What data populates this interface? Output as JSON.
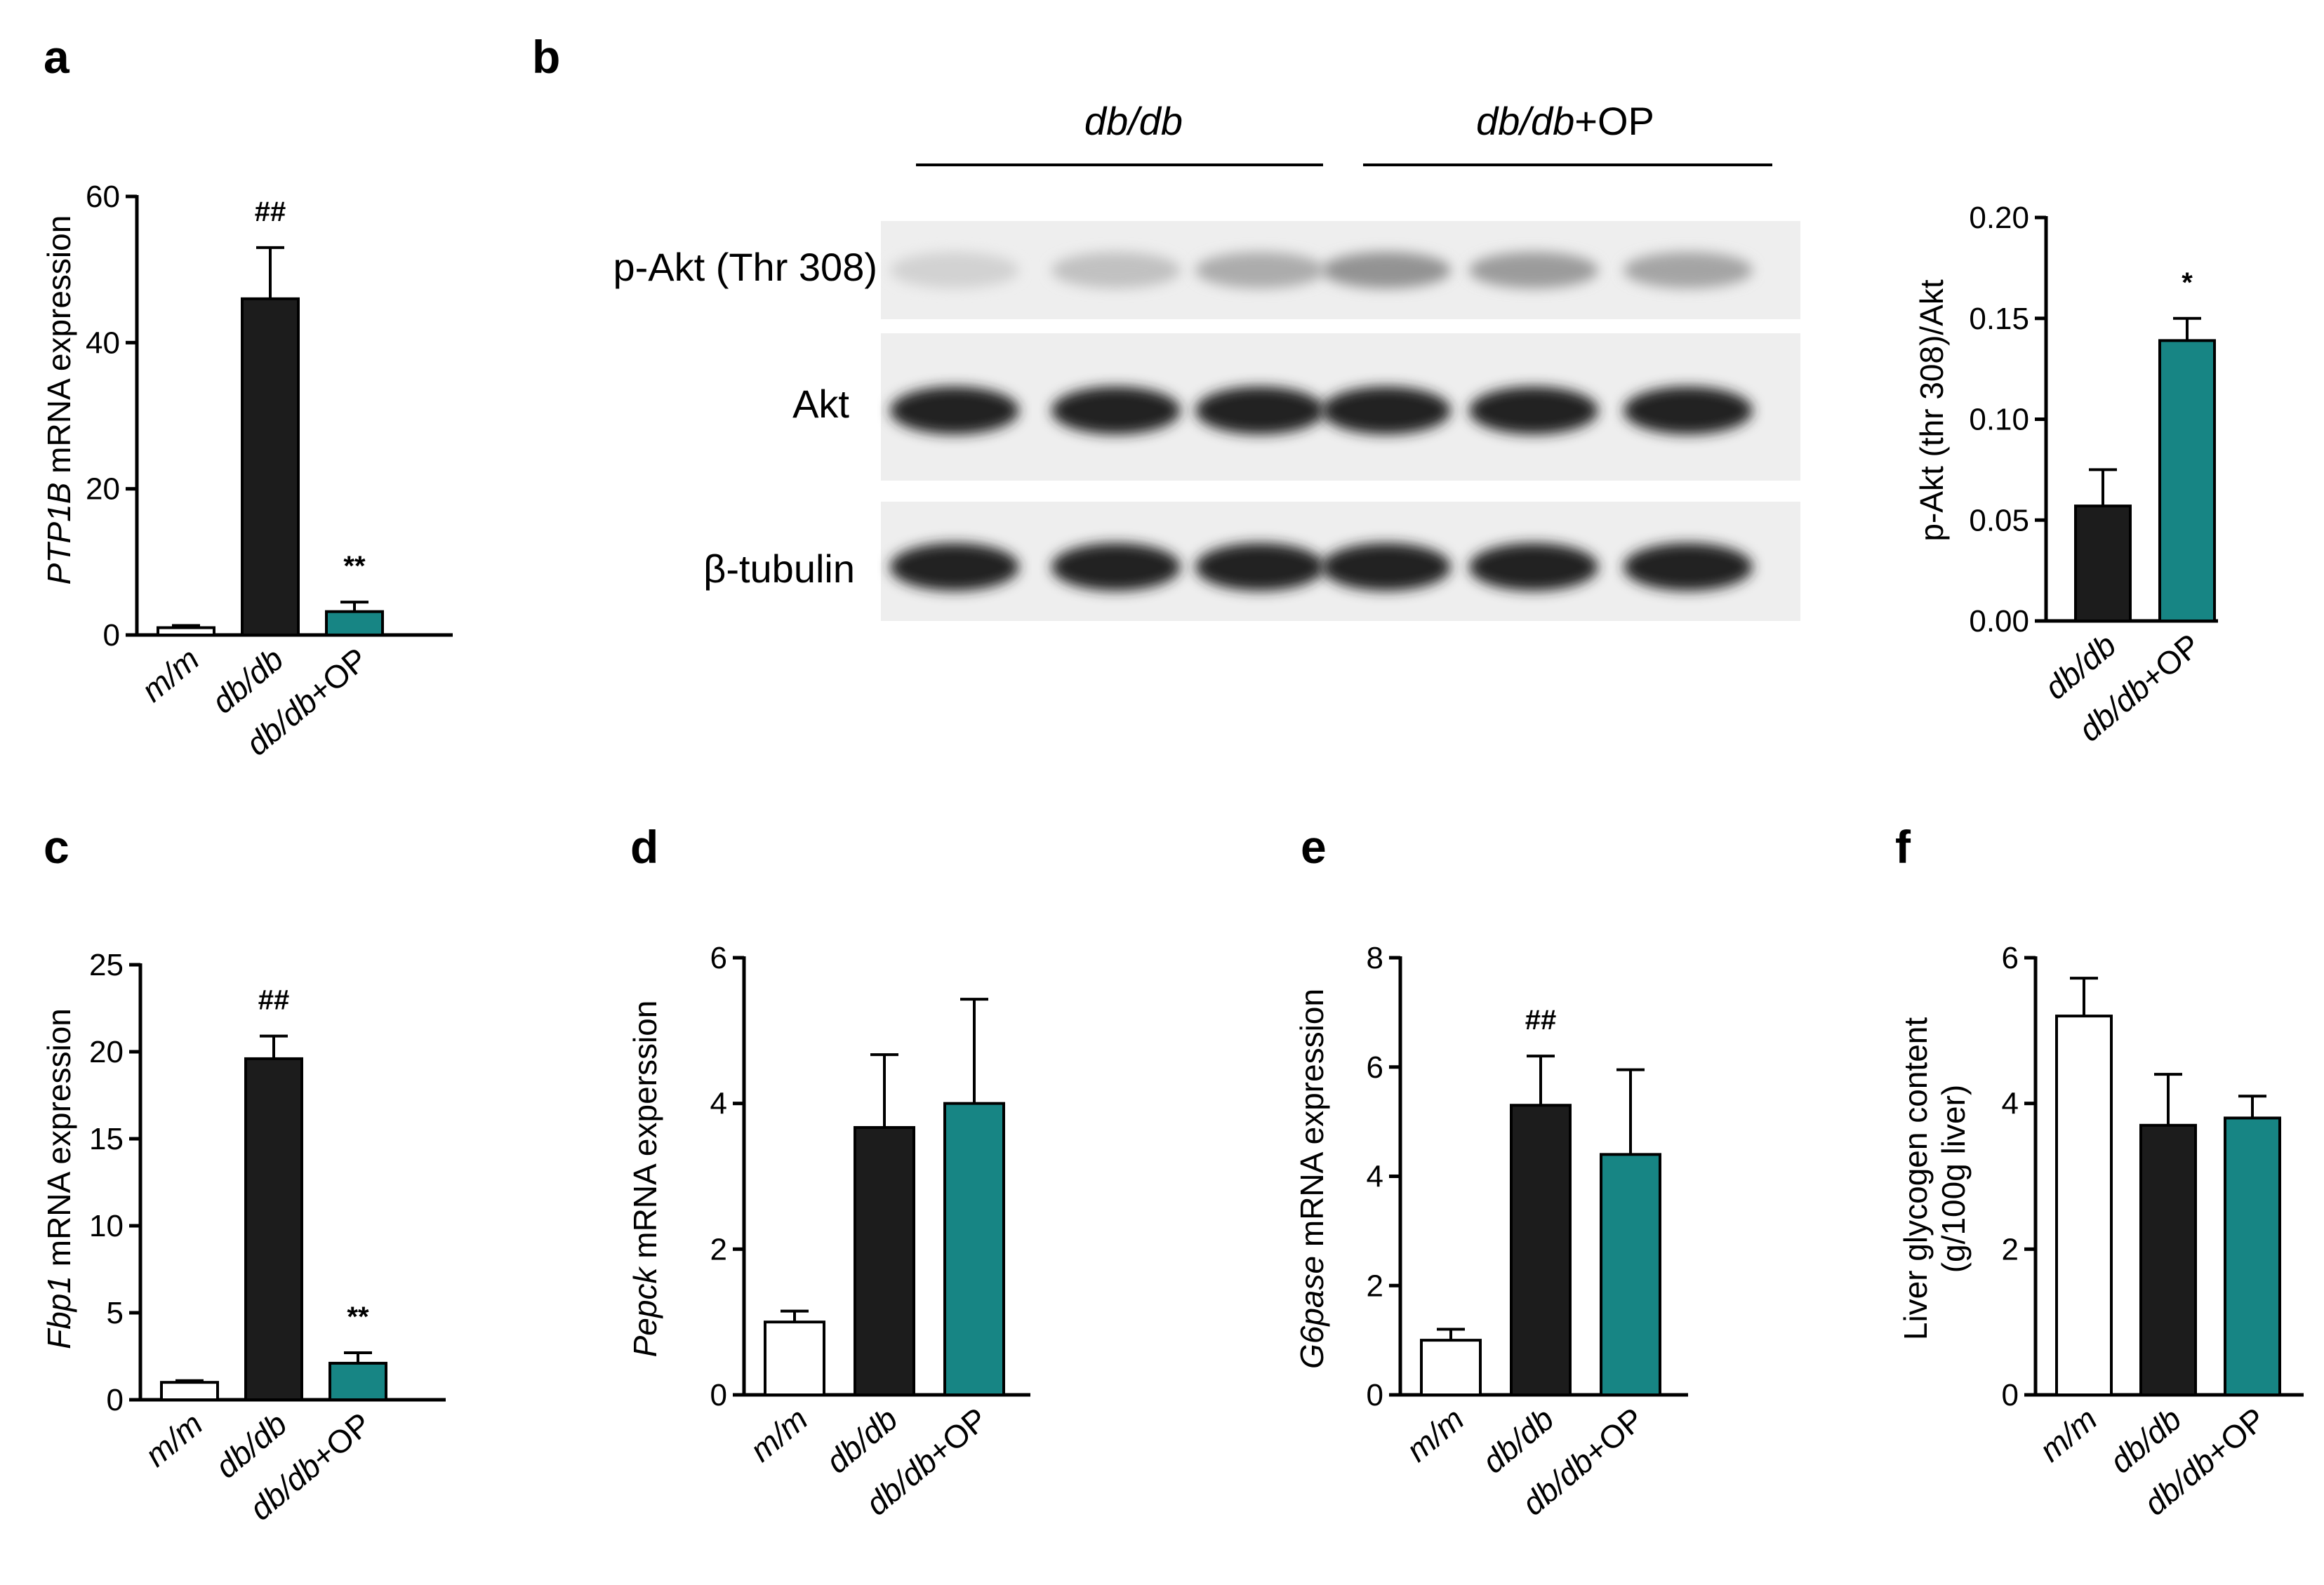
{
  "colors": {
    "m/m": "#ffffff",
    "db/db": "#1c1c1c",
    "db/db+OP": "#178584",
    "outline": "#000000"
  },
  "panels": [
    {
      "letter": "a",
      "ylabel_italic": "PTP1B",
      "ylabel_rest": " mRNA expression"
    },
    {
      "letter": "b"
    },
    {
      "letter": "c",
      "ylabel_italic": "Fbp1",
      "ylabel_rest": " mRNA expression"
    },
    {
      "letter": "d",
      "ylabel_italic": "Pepck",
      "ylabel_rest": " mRNA experssion"
    },
    {
      "letter": "e",
      "ylabel_italic": "G6pase",
      "ylabel_rest": " mRNA expression"
    },
    {
      "letter": "f"
    }
  ],
  "blot": {
    "groups": [
      {
        "italic": "db/db",
        "rest": ""
      },
      {
        "italic": "db/db",
        "rest": "+OP"
      }
    ],
    "rows": [
      {
        "label": "p-Akt (Thr 308)",
        "intensity": [
          0.12,
          0.2,
          0.3,
          0.42,
          0.38,
          0.34
        ]
      },
      {
        "label": "Akt",
        "intensity": [
          0.95,
          0.95,
          0.95,
          0.95,
          0.95,
          0.95
        ]
      },
      {
        "label": "β-tubulin",
        "intensity": [
          0.95,
          0.95,
          0.95,
          0.95,
          0.95,
          0.95
        ]
      }
    ]
  },
  "chart_data": [
    {
      "panel": "a",
      "type": "bar",
      "categories": [
        "m/m",
        "db/db",
        "db/db+OP"
      ],
      "values": [
        1,
        46,
        3.2
      ],
      "errors": [
        0.3,
        7,
        1.3
      ],
      "significance": [
        "",
        "##",
        "**"
      ],
      "ylim": [
        0,
        60
      ],
      "yticks": [
        0,
        20,
        40,
        60
      ],
      "yticklabels": [
        "0",
        "20",
        "40",
        "60"
      ],
      "ylabel": "PTP1B mRNA expression"
    },
    {
      "panel": "b",
      "type": "bar",
      "categories": [
        "db/db",
        "db/db+OP"
      ],
      "values": [
        0.057,
        0.139
      ],
      "errors": [
        0.018,
        0.011
      ],
      "significance": [
        "",
        "*"
      ],
      "ylim": [
        0,
        0.2
      ],
      "yticks": [
        0,
        0.05,
        0.1,
        0.15,
        0.2
      ],
      "yticklabels": [
        "0.00",
        "0.05",
        "0.10",
        "0.15",
        "0.20"
      ],
      "ylabel": "p-Akt (thr 308)/Akt"
    },
    {
      "panel": "c",
      "type": "bar",
      "categories": [
        "m/m",
        "db/db",
        "db/db+OP"
      ],
      "values": [
        1,
        19.6,
        2.1
      ],
      "errors": [
        0.1,
        1.3,
        0.6
      ],
      "significance": [
        "",
        "##",
        "**"
      ],
      "ylim": [
        0,
        25
      ],
      "yticks": [
        0,
        5,
        10,
        15,
        20,
        25
      ],
      "yticklabels": [
        "0",
        "5",
        "10",
        "15",
        "20",
        "25"
      ],
      "ylabel": "Fbp1 mRNA expression"
    },
    {
      "panel": "d",
      "type": "bar",
      "categories": [
        "m/m",
        "db/db",
        "db/db+OP"
      ],
      "values": [
        1,
        3.67,
        4.0
      ],
      "errors": [
        0.15,
        1.0,
        1.43
      ],
      "significance": [
        "",
        "",
        ""
      ],
      "ylim": [
        0,
        6
      ],
      "yticks": [
        0,
        2,
        4,
        6
      ],
      "yticklabels": [
        "0",
        "2",
        "4",
        "6"
      ],
      "ylabel": "Pepck mRNA experssion"
    },
    {
      "panel": "e",
      "type": "bar",
      "categories": [
        "m/m",
        "db/db",
        "db/db+OP"
      ],
      "values": [
        1,
        5.3,
        4.4
      ],
      "errors": [
        0.2,
        0.9,
        1.55
      ],
      "significance": [
        "",
        "##",
        ""
      ],
      "ylim": [
        0,
        8
      ],
      "yticks": [
        0,
        2,
        4,
        6,
        8
      ],
      "yticklabels": [
        "0",
        "2",
        "4",
        "6",
        "8"
      ],
      "ylabel": "G6pase mRNA expression"
    },
    {
      "panel": "f",
      "type": "bar",
      "categories": [
        "m/m",
        "db/db",
        "db/db+OP"
      ],
      "values": [
        5.2,
        3.7,
        3.8
      ],
      "errors": [
        0.52,
        0.7,
        0.3
      ],
      "significance": [
        "",
        "",
        ""
      ],
      "ylim": [
        0,
        6
      ],
      "yticks": [
        0,
        2,
        4,
        6
      ],
      "yticklabels": [
        "0",
        "2",
        "4",
        "6"
      ],
      "ylabel": "Liver glycogen content (g/100g liver)",
      "ylabel_lines": [
        "Liver glycogen content",
        "(g/100g liver)"
      ]
    }
  ]
}
